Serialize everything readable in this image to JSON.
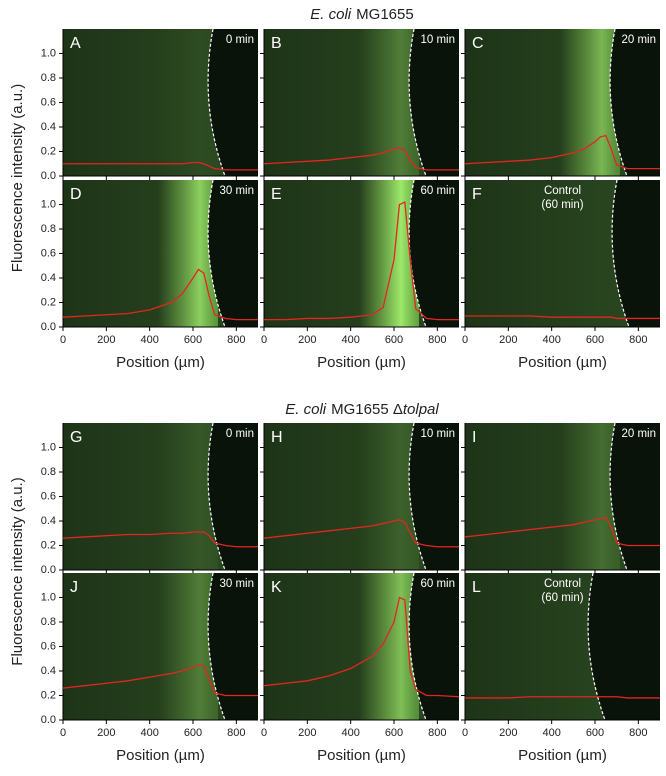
{
  "groups": [
    {
      "title": [
        {
          "text": "E. coli",
          "italic": true
        },
        {
          "text": "MG1655"
        }
      ],
      "ylabel": "Fluorescence intensity (a.u.)"
    },
    {
      "title": [
        {
          "text": "E. coli",
          "italic": true
        },
        {
          "text": "MG1655 Δ"
        },
        {
          "text": "tolpal",
          "italic": true
        }
      ],
      "ylabel": "Fluorescence intensity (a.u.)"
    }
  ],
  "chart_data": [
    {
      "type": "line",
      "panel": "A",
      "annotation": [
        "0 min"
      ],
      "color": "#e3261f",
      "x": [
        0,
        100,
        200,
        300,
        400,
        500,
        550,
        600,
        625,
        650,
        675,
        700,
        750,
        800,
        900
      ],
      "values": [
        0.1,
        0.1,
        0.1,
        0.1,
        0.1,
        0.1,
        0.1,
        0.11,
        0.11,
        0.1,
        0.08,
        0.06,
        0.05,
        0.05,
        0.05
      ],
      "xlim": [
        0,
        900
      ],
      "ylim": [
        0,
        1.2
      ],
      "xticks": [
        0,
        200,
        400,
        600,
        800
      ],
      "yticks": [
        {
          "value": 0,
          "label": "0.0"
        },
        0.2,
        0.4,
        0.6,
        0.8,
        {
          "value": 1,
          "label": "1.0"
        }
      ]
    },
    {
      "type": "line",
      "panel": "B",
      "annotation": [
        "10 min"
      ],
      "color": "#e3261f",
      "x": [
        0,
        100,
        200,
        300,
        400,
        500,
        550,
        600,
        625,
        650,
        675,
        700,
        750,
        800,
        900
      ],
      "values": [
        0.1,
        0.11,
        0.12,
        0.13,
        0.15,
        0.17,
        0.19,
        0.22,
        0.23,
        0.21,
        0.13,
        0.07,
        0.05,
        0.05,
        0.05
      ],
      "xlim": [
        0,
        900
      ],
      "ylim": [
        0,
        1.2
      ],
      "xticks": [
        0,
        200,
        400,
        600,
        800
      ],
      "yticks": [
        {
          "value": 0,
          "label": "0.0"
        },
        0.2,
        0.4,
        0.6,
        0.8,
        {
          "value": 1,
          "label": "1.0"
        }
      ]
    },
    {
      "type": "line",
      "panel": "C",
      "annotation": [
        "20 min"
      ],
      "color": "#e3261f",
      "x": [
        0,
        100,
        200,
        300,
        400,
        500,
        550,
        600,
        625,
        650,
        675,
        700,
        750,
        800,
        900
      ],
      "values": [
        0.1,
        0.11,
        0.12,
        0.13,
        0.15,
        0.19,
        0.22,
        0.28,
        0.32,
        0.33,
        0.22,
        0.09,
        0.06,
        0.06,
        0.06
      ],
      "xlim": [
        0,
        900
      ],
      "ylim": [
        0,
        1.2
      ],
      "xticks": [
        0,
        200,
        400,
        600,
        800
      ],
      "yticks": [
        {
          "value": 0,
          "label": "0.0"
        },
        0.2,
        0.4,
        0.6,
        0.8,
        {
          "value": 1,
          "label": "1.0"
        }
      ]
    },
    {
      "type": "line",
      "panel": "D",
      "annotation": [
        "30 min"
      ],
      "color": "#e3261f",
      "x": [
        0,
        100,
        200,
        300,
        400,
        500,
        550,
        600,
        625,
        650,
        675,
        700,
        750,
        800,
        900
      ],
      "values": [
        0.08,
        0.09,
        0.1,
        0.11,
        0.14,
        0.2,
        0.27,
        0.4,
        0.47,
        0.44,
        0.25,
        0.1,
        0.07,
        0.06,
        0.06
      ],
      "xlim": [
        0,
        900
      ],
      "ylim": [
        0,
        1.2
      ],
      "xticks": [
        0,
        200,
        400,
        600,
        800
      ],
      "yticks": [
        {
          "value": 0,
          "label": "0.0"
        },
        0.2,
        0.4,
        0.6,
        0.8,
        {
          "value": 1,
          "label": "1.0"
        }
      ],
      "xlabel": "Position (µm)"
    },
    {
      "type": "line",
      "panel": "E",
      "annotation": [
        "60 min"
      ],
      "color": "#e3261f",
      "x": [
        0,
        100,
        200,
        300,
        400,
        500,
        550,
        600,
        625,
        650,
        675,
        700,
        750,
        800,
        900
      ],
      "values": [
        0.06,
        0.06,
        0.07,
        0.07,
        0.08,
        0.1,
        0.16,
        0.55,
        1.0,
        1.02,
        0.55,
        0.15,
        0.07,
        0.06,
        0.06
      ],
      "xlim": [
        0,
        900
      ],
      "ylim": [
        0,
        1.2
      ],
      "xticks": [
        0,
        200,
        400,
        600,
        800
      ],
      "yticks": [
        {
          "value": 0,
          "label": "0.0"
        },
        0.2,
        0.4,
        0.6,
        0.8,
        {
          "value": 1,
          "label": "1.0"
        }
      ],
      "xlabel": "Position (µm)"
    },
    {
      "type": "line",
      "panel": "F",
      "annotation": [
        "Control",
        "(60 min)"
      ],
      "color": "#e3261f",
      "x": [
        0,
        100,
        200,
        300,
        400,
        500,
        550,
        600,
        625,
        650,
        675,
        700,
        750,
        800,
        900
      ],
      "values": [
        0.09,
        0.09,
        0.09,
        0.09,
        0.08,
        0.08,
        0.08,
        0.08,
        0.08,
        0.08,
        0.08,
        0.07,
        0.07,
        0.07,
        0.07
      ],
      "xlim": [
        0,
        900
      ],
      "ylim": [
        0,
        1.2
      ],
      "xticks": [
        0,
        200,
        400,
        600,
        800
      ],
      "yticks": [
        {
          "value": 0,
          "label": "0.0"
        },
        0.2,
        0.4,
        0.6,
        0.8,
        {
          "value": 1,
          "label": "1.0"
        }
      ],
      "xlabel": "Position (µm)"
    },
    {
      "type": "line",
      "panel": "G",
      "annotation": [
        "0 min"
      ],
      "color": "#e3261f",
      "x": [
        0,
        100,
        200,
        300,
        400,
        500,
        550,
        600,
        625,
        650,
        675,
        700,
        750,
        800,
        900
      ],
      "values": [
        0.26,
        0.27,
        0.28,
        0.29,
        0.29,
        0.3,
        0.3,
        0.31,
        0.31,
        0.31,
        0.28,
        0.22,
        0.2,
        0.19,
        0.19
      ],
      "xlim": [
        0,
        900
      ],
      "ylim": [
        0,
        1.2
      ],
      "xticks": [
        0,
        200,
        400,
        600,
        800
      ],
      "yticks": [
        {
          "value": 0,
          "label": "0.0"
        },
        0.2,
        0.4,
        0.6,
        0.8,
        {
          "value": 1,
          "label": "1.0"
        }
      ]
    },
    {
      "type": "line",
      "panel": "H",
      "annotation": [
        "10 min"
      ],
      "color": "#e3261f",
      "x": [
        0,
        100,
        200,
        300,
        400,
        500,
        550,
        600,
        625,
        650,
        675,
        700,
        750,
        800,
        900
      ],
      "values": [
        0.26,
        0.28,
        0.3,
        0.32,
        0.34,
        0.36,
        0.38,
        0.4,
        0.41,
        0.39,
        0.3,
        0.22,
        0.2,
        0.19,
        0.19
      ],
      "xlim": [
        0,
        900
      ],
      "ylim": [
        0,
        1.2
      ],
      "xticks": [
        0,
        200,
        400,
        600,
        800
      ],
      "yticks": [
        {
          "value": 0,
          "label": "0.0"
        },
        0.2,
        0.4,
        0.6,
        0.8,
        {
          "value": 1,
          "label": "1.0"
        }
      ]
    },
    {
      "type": "line",
      "panel": "I",
      "annotation": [
        "20 min"
      ],
      "color": "#e3261f",
      "x": [
        0,
        100,
        200,
        300,
        400,
        500,
        550,
        600,
        625,
        650,
        675,
        700,
        750,
        800,
        900
      ],
      "values": [
        0.27,
        0.29,
        0.31,
        0.33,
        0.35,
        0.37,
        0.39,
        0.41,
        0.42,
        0.43,
        0.35,
        0.22,
        0.2,
        0.2,
        0.2
      ],
      "xlim": [
        0,
        900
      ],
      "ylim": [
        0,
        1.2
      ],
      "xticks": [
        0,
        200,
        400,
        600,
        800
      ],
      "yticks": [
        {
          "value": 0,
          "label": "0.0"
        },
        0.2,
        0.4,
        0.6,
        0.8,
        {
          "value": 1,
          "label": "1.0"
        }
      ]
    },
    {
      "type": "line",
      "panel": "J",
      "annotation": [
        "30 min"
      ],
      "color": "#e3261f",
      "x": [
        0,
        100,
        200,
        300,
        400,
        500,
        550,
        600,
        625,
        650,
        675,
        700,
        750,
        800,
        900
      ],
      "values": [
        0.26,
        0.28,
        0.3,
        0.32,
        0.35,
        0.38,
        0.4,
        0.43,
        0.45,
        0.44,
        0.33,
        0.22,
        0.2,
        0.2,
        0.2
      ],
      "xlim": [
        0,
        900
      ],
      "ylim": [
        0,
        1.2
      ],
      "xticks": [
        0,
        200,
        400,
        600,
        800
      ],
      "yticks": [
        {
          "value": 0,
          "label": "0.0"
        },
        0.2,
        0.4,
        0.6,
        0.8,
        {
          "value": 1,
          "label": "1.0"
        }
      ],
      "xlabel": "Position (µm)"
    },
    {
      "type": "line",
      "panel": "K",
      "annotation": [
        "60 min"
      ],
      "color": "#e3261f",
      "x": [
        0,
        100,
        200,
        300,
        400,
        500,
        550,
        600,
        625,
        650,
        675,
        700,
        750,
        800,
        900
      ],
      "values": [
        0.28,
        0.3,
        0.32,
        0.36,
        0.42,
        0.52,
        0.62,
        0.8,
        1.0,
        0.98,
        0.4,
        0.25,
        0.2,
        0.2,
        0.19
      ],
      "xlim": [
        0,
        900
      ],
      "ylim": [
        0,
        1.2
      ],
      "xticks": [
        0,
        200,
        400,
        600,
        800
      ],
      "yticks": [
        {
          "value": 0,
          "label": "0.0"
        },
        0.2,
        0.4,
        0.6,
        0.8,
        {
          "value": 1,
          "label": "1.0"
        }
      ],
      "xlabel": "Position (µm)"
    },
    {
      "type": "line",
      "panel": "L",
      "annotation": [
        "Control",
        "(60 min)"
      ],
      "color": "#e3261f",
      "x": [
        0,
        100,
        200,
        300,
        400,
        500,
        550,
        600,
        625,
        650,
        675,
        700,
        750,
        800,
        900
      ],
      "values": [
        0.18,
        0.18,
        0.18,
        0.19,
        0.19,
        0.19,
        0.19,
        0.19,
        0.19,
        0.19,
        0.19,
        0.19,
        0.18,
        0.18,
        0.18
      ],
      "xlim": [
        0,
        900
      ],
      "ylim": [
        0,
        1.2
      ],
      "xticks": [
        0,
        200,
        400,
        600,
        800
      ],
      "yticks": [
        {
          "value": 0,
          "label": "0.0"
        },
        0.2,
        0.4,
        0.6,
        0.8,
        {
          "value": 1,
          "label": "1.0"
        }
      ],
      "xlabel": "Position (µm)"
    }
  ]
}
